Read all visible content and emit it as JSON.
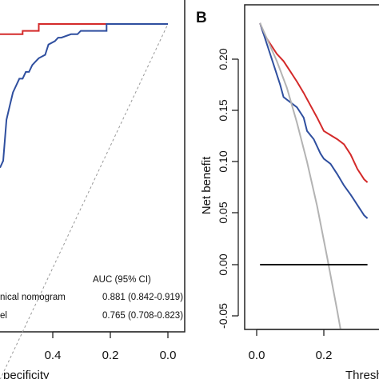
{
  "colors": {
    "clinical_nomogram": "#d42a2a",
    "model": "#2f4f9f",
    "reference": "#111111",
    "treat_all": "#b3b3b3",
    "diagonal": "#999999"
  },
  "panel_a": {
    "legend_header": "AUC (95% CI)",
    "legend_rows": [
      {
        "label": "nical nomogram",
        "value": "0.881 (0.842-0.919)",
        "color": "#d42a2a"
      },
      {
        "label": "el",
        "value": "0.765 (0.708-0.823)",
        "color": "#2f4f9f"
      }
    ],
    "x_tick_labels": [
      "0.4",
      "0.2",
      "0.0"
    ],
    "x_axis_label": "pecificity"
  },
  "panel_b": {
    "panel_letter": "B",
    "y_axis_label": "Net benefit",
    "x_axis_label": "Thresh",
    "y_tick_labels": [
      "-0.05",
      "0.00",
      "0.05",
      "0.10",
      "0.15",
      "0.20"
    ],
    "x_tick_labels": [
      "0.0",
      "0.2"
    ]
  },
  "chart_data": [
    {
      "type": "line",
      "panel": "A",
      "xlabel": "pecificity",
      "ylabel": "",
      "x_reversed": true,
      "xlim": [
        0.0,
        0.52
      ],
      "ylim": [
        0.55,
        1.0
      ],
      "series": [
        {
          "name": "nical nomogram",
          "color": "#d42a2a",
          "x": [
            0.52,
            0.45,
            0.45,
            0.4,
            0.4,
            0.19,
            0.19,
            0.0
          ],
          "y": [
            0.985,
            0.985,
            0.99,
            0.99,
            1.0,
            1.0,
            1.0,
            1.0
          ]
        },
        {
          "name": "el",
          "color": "#2f4f9f",
          "x": [
            0.52,
            0.51,
            0.5,
            0.49,
            0.48,
            0.47,
            0.46,
            0.45,
            0.44,
            0.43,
            0.42,
            0.41,
            0.4,
            0.38,
            0.37,
            0.35,
            0.34,
            0.33,
            0.3,
            0.28,
            0.27,
            0.19,
            0.19,
            0.0
          ],
          "y": [
            0.79,
            0.8,
            0.86,
            0.88,
            0.9,
            0.91,
            0.92,
            0.92,
            0.93,
            0.93,
            0.94,
            0.945,
            0.95,
            0.955,
            0.97,
            0.975,
            0.98,
            0.98,
            0.985,
            0.985,
            0.99,
            0.99,
            1.0,
            1.0
          ]
        },
        {
          "name": "",
          "color": "#999999",
          "dashed": true,
          "x": [
            0.52,
            0.0
          ],
          "y": [
            0.48,
            1.0
          ]
        }
      ]
    },
    {
      "type": "line",
      "panel": "B",
      "xlabel": "Thresh",
      "ylabel": "Net benefit",
      "xlim": [
        0.0,
        0.33
      ],
      "ylim": [
        -0.06,
        0.23
      ],
      "series": [
        {
          "name": "",
          "color": "#d42a2a",
          "x": [
            0.01,
            0.02,
            0.04,
            0.06,
            0.08,
            0.1,
            0.12,
            0.14,
            0.16,
            0.18,
            0.2,
            0.22,
            0.24,
            0.26,
            0.28,
            0.3,
            0.31,
            0.32,
            0.33
          ],
          "y": [
            0.235,
            0.225,
            0.215,
            0.205,
            0.198,
            0.188,
            0.178,
            0.167,
            0.155,
            0.143,
            0.13,
            0.126,
            0.122,
            0.117,
            0.107,
            0.093,
            0.088,
            0.083,
            0.08
          ]
        },
        {
          "name": "",
          "color": "#2f4f9f",
          "x": [
            0.01,
            0.03,
            0.05,
            0.07,
            0.08,
            0.1,
            0.12,
            0.14,
            0.15,
            0.17,
            0.19,
            0.2,
            0.22,
            0.24,
            0.26,
            0.28,
            0.3,
            0.32,
            0.33
          ],
          "y": [
            0.235,
            0.215,
            0.195,
            0.175,
            0.163,
            0.158,
            0.153,
            0.143,
            0.13,
            0.122,
            0.108,
            0.103,
            0.098,
            0.088,
            0.077,
            0.068,
            0.058,
            0.048,
            0.045
          ]
        },
        {
          "name": "",
          "color": "#b3b3b3",
          "x": [
            0.01,
            0.06,
            0.09,
            0.12,
            0.15,
            0.18,
            0.21,
            0.24,
            0.27
          ],
          "y": [
            0.235,
            0.198,
            0.172,
            0.138,
            0.1,
            0.057,
            0.007,
            -0.045,
            -0.1
          ]
        },
        {
          "name": "",
          "color": "#111111",
          "x": [
            0.01,
            0.33
          ],
          "y": [
            0.0,
            0.0
          ]
        }
      ]
    }
  ]
}
